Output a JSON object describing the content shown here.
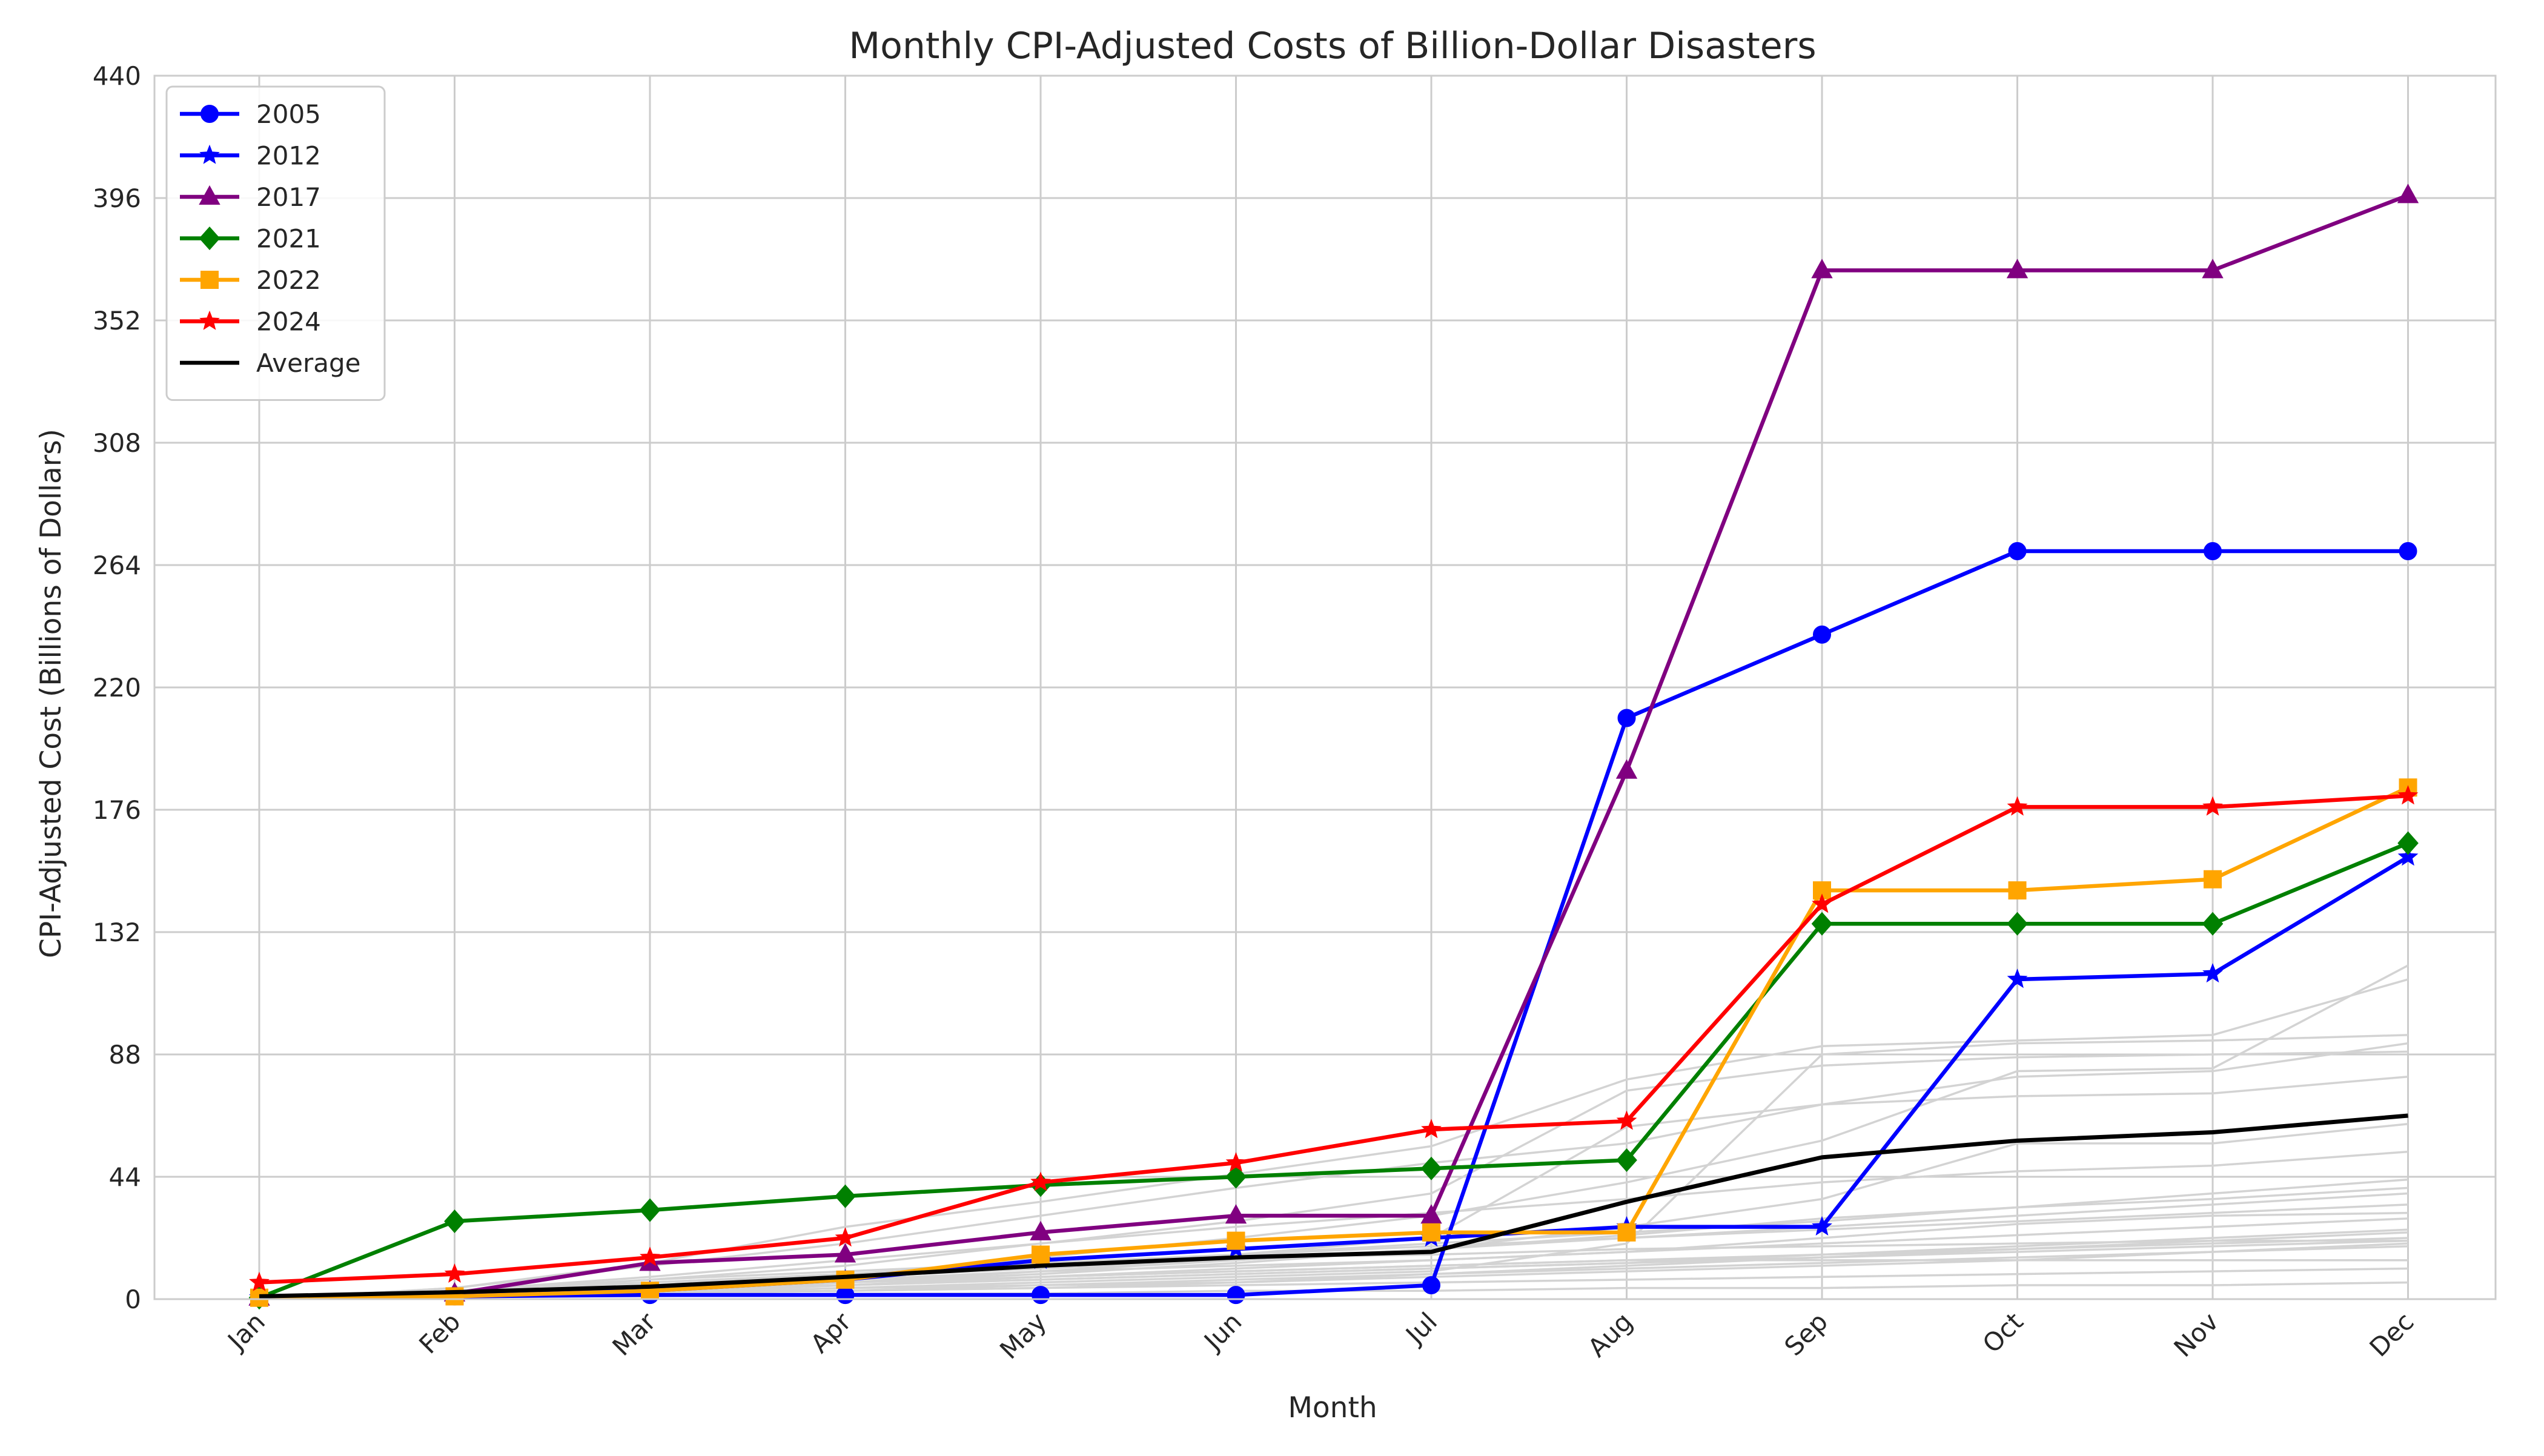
{
  "chart_data": {
    "type": "line",
    "title": "Monthly CPI-Adjusted Costs of Billion-Dollar Disasters",
    "xlabel": "Month",
    "ylabel": "CPI-Adjusted Cost (Billions of Dollars)",
    "categories": [
      "Jan",
      "Feb",
      "Mar",
      "Apr",
      "May",
      "Jun",
      "Jul",
      "Aug",
      "Sep",
      "Oct",
      "Nov",
      "Dec"
    ],
    "ylim": [
      0,
      440
    ],
    "yticks": [
      "0",
      "44",
      "88",
      "132",
      "176",
      "220",
      "264",
      "308",
      "352",
      "396",
      "440"
    ],
    "grid": true,
    "legend_position": "upper-left",
    "series": [
      {
        "name": "2005",
        "color": "#0000ff",
        "marker": "circle",
        "values": [
          0.5,
          1,
          1.5,
          1.5,
          1.5,
          1.5,
          5,
          209,
          239,
          269,
          269,
          269
        ]
      },
      {
        "name": "2012",
        "color": "#0000ff",
        "marker": "star",
        "values": [
          0.5,
          2,
          3,
          7,
          14,
          18,
          22,
          26,
          26,
          115,
          117,
          159
        ]
      },
      {
        "name": "2017",
        "color": "#800080",
        "marker": "triangle",
        "values": [
          0.5,
          2,
          13,
          16,
          24,
          30,
          30,
          190,
          370,
          370,
          370,
          397
        ]
      },
      {
        "name": "2021",
        "color": "#008000",
        "marker": "diamond",
        "values": [
          0.5,
          28,
          32,
          37,
          41,
          44,
          47,
          50,
          135,
          135,
          135,
          164
        ]
      },
      {
        "name": "2022",
        "color": "#ffa500",
        "marker": "square",
        "values": [
          0.5,
          1,
          3,
          7,
          16,
          21,
          24,
          24,
          147,
          147,
          151,
          184
        ]
      },
      {
        "name": "2024",
        "color": "#ff0000",
        "marker": "star",
        "values": [
          6,
          9,
          15,
          22,
          42,
          49,
          61,
          64,
          142,
          177,
          177,
          181
        ]
      },
      {
        "name": "Average",
        "color": "#000000",
        "marker": "none",
        "values": [
          1,
          2.5,
          4.5,
          8,
          12,
          15,
          17,
          35,
          51,
          57,
          60,
          66
        ]
      }
    ],
    "background_series": [
      [
        0,
        2,
        4,
        5,
        8,
        10,
        12,
        14,
        14,
        14,
        14,
        14
      ],
      [
        0,
        3,
        6,
        9,
        13,
        15,
        16,
        18,
        19,
        20,
        21,
        21
      ],
      [
        0,
        1,
        2,
        4,
        6,
        8,
        10,
        20,
        88,
        92,
        93,
        95
      ],
      [
        0,
        2,
        7,
        12,
        20,
        28,
        38,
        75,
        84,
        87,
        88,
        89
      ],
      [
        0,
        1,
        3,
        8,
        15,
        22,
        30,
        42,
        57,
        82,
        83,
        120
      ],
      [
        0,
        4,
        13,
        26,
        35,
        45,
        55,
        79,
        91,
        93,
        95,
        115
      ],
      [
        0,
        1,
        2,
        3,
        4,
        5,
        6,
        7,
        8,
        9,
        10,
        11
      ],
      [
        0,
        2,
        4,
        6,
        10,
        14,
        18,
        22,
        26,
        30,
        34,
        38
      ],
      [
        0,
        1,
        2,
        4,
        5,
        6,
        9,
        12,
        15,
        18,
        21,
        24
      ],
      [
        0,
        3,
        7,
        10,
        13,
        16,
        19,
        22,
        25,
        28,
        31,
        34
      ],
      [
        0,
        1,
        2,
        3,
        5,
        7,
        9,
        11,
        13,
        15,
        17,
        19
      ],
      [
        0,
        2,
        5,
        9,
        12,
        16,
        22,
        62,
        70,
        73,
        74,
        80
      ],
      [
        0,
        1,
        3,
        6,
        9,
        13,
        18,
        26,
        36,
        56,
        56,
        63
      ],
      [
        0,
        2,
        4,
        7,
        10,
        12,
        14,
        17,
        22,
        27,
        30,
        31
      ],
      [
        0,
        3,
        5,
        8,
        11,
        14,
        18,
        23,
        29,
        33,
        36,
        40
      ],
      [
        0,
        1,
        1,
        2,
        2,
        3,
        3,
        4,
        4,
        5,
        5,
        6
      ],
      [
        0,
        2,
        3,
        5,
        7,
        9,
        11,
        13,
        16,
        19,
        22,
        25
      ],
      [
        0,
        4,
        12,
        20,
        30,
        40,
        49,
        56,
        70,
        80,
        82,
        92
      ],
      [
        0,
        1,
        2,
        3,
        4,
        6,
        8,
        10,
        12,
        14,
        17,
        20
      ],
      [
        0,
        2,
        6,
        9,
        12,
        16,
        20,
        24,
        28,
        33,
        38,
        43
      ],
      [
        0,
        3,
        8,
        14,
        20,
        26,
        31,
        36,
        42,
        46,
        48,
        53
      ],
      [
        0,
        1,
        2,
        5,
        8,
        11,
        14,
        17,
        20,
        23,
        26,
        29
      ],
      [
        0,
        2,
        4,
        6,
        8,
        10,
        12,
        14,
        16,
        18,
        20,
        22
      ],
      [
        0,
        1,
        3,
        5,
        7,
        9,
        11,
        13,
        15,
        17,
        19,
        21
      ]
    ]
  }
}
